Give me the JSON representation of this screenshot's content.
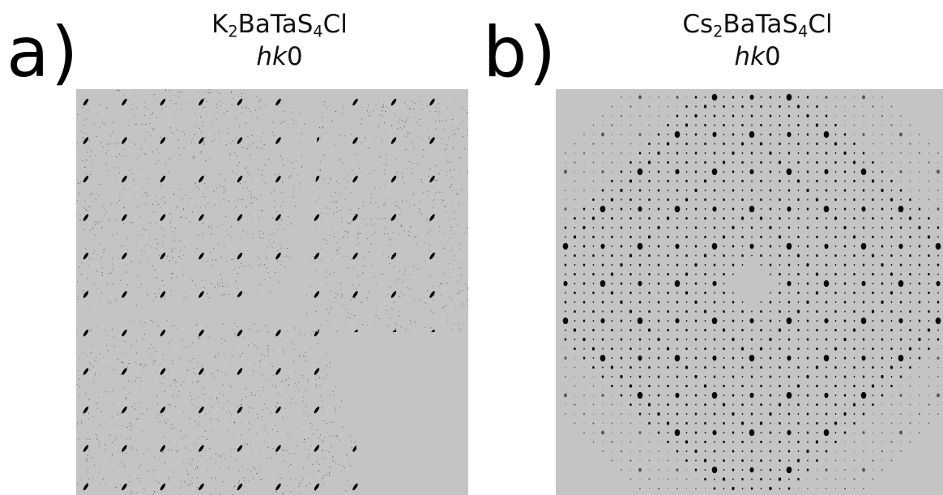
{
  "panels": [
    {
      "letter": "a)",
      "compound": {
        "parts": [
          "K",
          "2",
          "BaTaS",
          "4",
          "Cl"
        ]
      },
      "zone": {
        "h": "h",
        "k": "k",
        "l": "0"
      }
    },
    {
      "letter": "b)",
      "compound": {
        "parts": [
          "Cs",
          "2",
          "BaTaS",
          "4",
          "Cl"
        ]
      },
      "zone": {
        "h": "h",
        "k": "k",
        "l": "0"
      }
    }
  ],
  "colors": {
    "background": "#ffffff",
    "detector_gray": "#c4c4c4",
    "spot": "#000000",
    "noise": "#2a2a2a"
  }
}
